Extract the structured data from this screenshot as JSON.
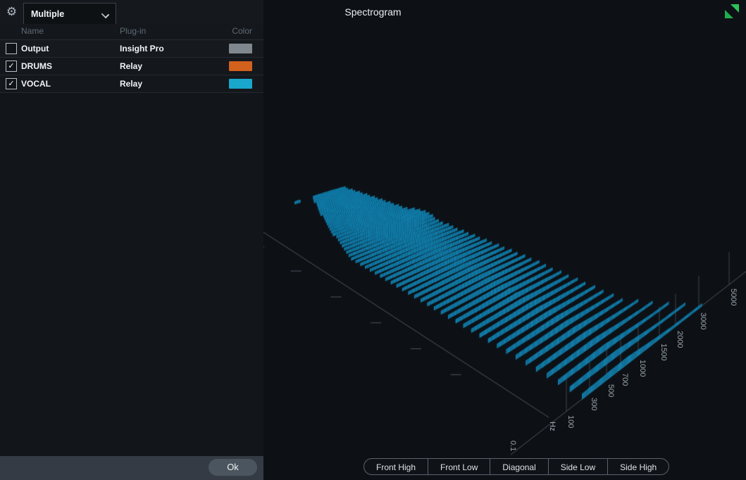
{
  "window": {
    "title": "Spectrogram"
  },
  "header": {
    "source_selector_value": "Multiple",
    "gear_icon": "gear",
    "resize_icon": "green-resize-triangles",
    "resize_colors": [
      "#1fae4e",
      "#2bc35b"
    ]
  },
  "source_table": {
    "columns": [
      "Name",
      "Plug-in",
      "Color"
    ],
    "rows": [
      {
        "name": "Output",
        "plugin": "Insight Pro",
        "color": "#80878f",
        "checked": false
      },
      {
        "name": "DRUMS",
        "plugin": "Relay",
        "color": "#d2611e",
        "checked": true
      },
      {
        "name": "VOCAL",
        "plugin": "Relay",
        "color": "#19a7cb",
        "checked": true
      }
    ],
    "ok_label": "Ok"
  },
  "spectrogram": {
    "background": "#0d1116",
    "freq_axis": {
      "unit": "Hz",
      "origin_label": "0.1",
      "tick_labels": [
        "100",
        "300",
        "500",
        "700",
        "1000",
        "1500",
        "2000",
        "3000",
        "5000"
      ]
    },
    "surfaces": [
      {
        "name": "DRUMS",
        "base_color": "#d2611e",
        "ramp": [
          [
            0,
            "#a34a12"
          ],
          [
            0.3,
            "#d86420"
          ],
          [
            0.55,
            "#ef8a4e"
          ],
          [
            0.78,
            "#f8bb90"
          ],
          [
            1,
            "#fff3e8"
          ]
        ]
      },
      {
        "name": "VOCAL",
        "base_color": "#19a7cb",
        "ramp": [
          [
            0,
            "#0e7fae"
          ],
          [
            0.3,
            "#2fa9da"
          ],
          [
            0.55,
            "#62c4ec"
          ],
          [
            0.8,
            "#bce8f8"
          ],
          [
            1,
            "#f0fbff"
          ]
        ]
      }
    ]
  },
  "view_buttons": [
    "Front High",
    "Front Low",
    "Diagonal",
    "Side Low",
    "Side High"
  ]
}
